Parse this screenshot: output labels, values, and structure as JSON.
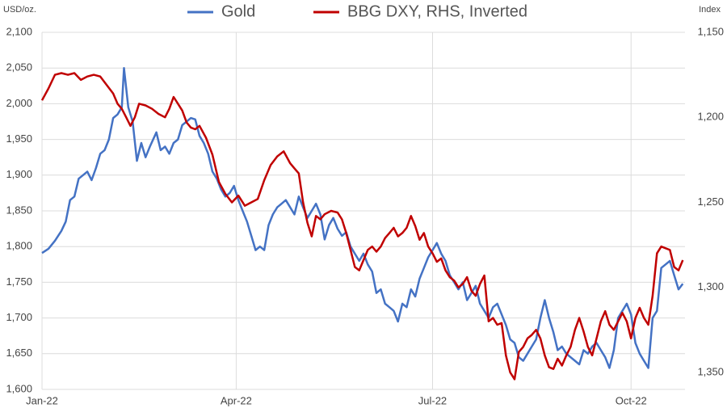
{
  "chart_data": {
    "type": "line",
    "y_label": "USD/oz.",
    "y2_label": "Index",
    "xlim": [
      0,
      298
    ],
    "xticks": [
      {
        "value": 0,
        "label": "Jan-22"
      },
      {
        "value": 90,
        "label": "Apr-22"
      },
      {
        "value": 181,
        "label": "Jul-22"
      },
      {
        "value": 273,
        "label": "Oct-22"
      }
    ],
    "ylim": [
      1600,
      2100
    ],
    "yticks": [
      {
        "value": 1600,
        "label": "1,600"
      },
      {
        "value": 1650,
        "label": "1,650"
      },
      {
        "value": 1700,
        "label": "1,700"
      },
      {
        "value": 1750,
        "label": "1,750"
      },
      {
        "value": 1800,
        "label": "1,800"
      },
      {
        "value": 1850,
        "label": "1,850"
      },
      {
        "value": 1900,
        "label": "1,900"
      },
      {
        "value": 1950,
        "label": "1,950"
      },
      {
        "value": 2000,
        "label": "2,000"
      },
      {
        "value": 2050,
        "label": "2,050"
      },
      {
        "value": 2100,
        "label": "2,100"
      }
    ],
    "y2lim": [
      1150,
      1360
    ],
    "y2_inverted": true,
    "y2ticks": [
      {
        "value": 1150,
        "label": "1,150"
      },
      {
        "value": 1200,
        "label": "1,200"
      },
      {
        "value": 1250,
        "label": "1,250"
      },
      {
        "value": 1300,
        "label": "1,300"
      },
      {
        "value": 1350,
        "label": "1,350"
      }
    ],
    "grid": true,
    "legend": "top",
    "series": [
      {
        "name": "Gold",
        "color": "#4472c4",
        "x": [
          0,
          3,
          6,
          9,
          11,
          13,
          15,
          17,
          19,
          21,
          23,
          25,
          27,
          29,
          31,
          33,
          35,
          37,
          38,
          40,
          42,
          44,
          46,
          48,
          50,
          53,
          55,
          57,
          59,
          61,
          63,
          65,
          67,
          69,
          71,
          73,
          75,
          77,
          79,
          81,
          83,
          85,
          87,
          89,
          91,
          93,
          95,
          97,
          99,
          101,
          103,
          105,
          107,
          109,
          111,
          113,
          115,
          117,
          119,
          121,
          123,
          125,
          127,
          129,
          131,
          133,
          135,
          137,
          139,
          141,
          143,
          145,
          147,
          149,
          151,
          153,
          155,
          157,
          159,
          161,
          163,
          165,
          167,
          169,
          171,
          173,
          175,
          177,
          179,
          181,
          183,
          185,
          187,
          189,
          191,
          193,
          195,
          197,
          199,
          201,
          203,
          205,
          207,
          209,
          211,
          213,
          215,
          217,
          219,
          221,
          223,
          225,
          227,
          229,
          231,
          233,
          235,
          237,
          239,
          241,
          243,
          245,
          247,
          249,
          251,
          253,
          255,
          257,
          259,
          261,
          263,
          265,
          267,
          269,
          271,
          273,
          275,
          277,
          279,
          281,
          283,
          285,
          287,
          289,
          291,
          293,
          295,
          297
        ],
        "values": [
          1791,
          1797,
          1808,
          1822,
          1835,
          1865,
          1870,
          1895,
          1900,
          1905,
          1893,
          1910,
          1930,
          1935,
          1950,
          1980,
          1985,
          1995,
          2050,
          1995,
          1975,
          1920,
          1945,
          1925,
          1940,
          1960,
          1935,
          1940,
          1930,
          1945,
          1950,
          1970,
          1975,
          1980,
          1978,
          1955,
          1945,
          1930,
          1905,
          1895,
          1880,
          1870,
          1875,
          1885,
          1865,
          1850,
          1835,
          1815,
          1795,
          1800,
          1795,
          1830,
          1845,
          1855,
          1860,
          1865,
          1855,
          1845,
          1870,
          1855,
          1840,
          1850,
          1860,
          1845,
          1810,
          1830,
          1840,
          1825,
          1815,
          1820,
          1800,
          1790,
          1780,
          1790,
          1775,
          1765,
          1735,
          1740,
          1720,
          1715,
          1710,
          1695,
          1720,
          1715,
          1740,
          1730,
          1755,
          1770,
          1785,
          1795,
          1805,
          1790,
          1780,
          1760,
          1750,
          1740,
          1750,
          1725,
          1735,
          1745,
          1720,
          1710,
          1700,
          1715,
          1720,
          1705,
          1690,
          1670,
          1665,
          1645,
          1640,
          1650,
          1660,
          1670,
          1700,
          1725,
          1700,
          1680,
          1655,
          1660,
          1650,
          1645,
          1640,
          1635,
          1655,
          1650,
          1660,
          1665,
          1655,
          1645,
          1630,
          1655,
          1700,
          1710,
          1720,
          1705,
          1665,
          1650,
          1640,
          1630,
          1700,
          1710,
          1770,
          1775,
          1780,
          1760,
          1740,
          1748
        ]
      },
      {
        "name": "BBG DXY, RHS, Inverted",
        "color": "#c00000",
        "axis": "y2",
        "x": [
          0,
          3,
          6,
          9,
          12,
          15,
          18,
          21,
          24,
          27,
          30,
          33,
          35,
          37,
          39,
          41,
          43,
          45,
          48,
          51,
          54,
          57,
          59,
          61,
          63,
          65,
          67,
          69,
          71,
          73,
          76,
          79,
          82,
          85,
          88,
          91,
          94,
          97,
          100,
          103,
          106,
          109,
          112,
          115,
          117,
          119,
          121,
          123,
          125,
          127,
          129,
          131,
          134,
          137,
          139,
          141,
          143,
          145,
          147,
          149,
          151,
          153,
          155,
          157,
          159,
          161,
          163,
          165,
          167,
          169,
          171,
          173,
          175,
          177,
          179,
          181,
          183,
          185,
          187,
          189,
          191,
          193,
          195,
          197,
          199,
          201,
          203,
          205,
          207,
          209,
          211,
          213,
          215,
          217,
          219,
          221,
          223,
          225,
          227,
          229,
          231,
          233,
          235,
          237,
          239,
          241,
          243,
          245,
          247,
          249,
          251,
          253,
          255,
          257,
          259,
          261,
          263,
          265,
          267,
          269,
          271,
          273,
          275,
          277,
          279,
          281,
          283,
          285,
          287,
          289,
          291,
          293,
          295,
          297
        ],
        "values": [
          1190,
          1183,
          1175,
          1174,
          1175,
          1174,
          1178,
          1176,
          1175,
          1176,
          1181,
          1186,
          1192,
          1195,
          1200,
          1205,
          1200,
          1192,
          1193,
          1195,
          1198,
          1200,
          1195,
          1188,
          1192,
          1196,
          1203,
          1206,
          1207,
          1205,
          1212,
          1222,
          1238,
          1245,
          1250,
          1246,
          1252,
          1250,
          1248,
          1237,
          1228,
          1223,
          1220,
          1227,
          1230,
          1233,
          1250,
          1262,
          1270,
          1258,
          1260,
          1257,
          1255,
          1256,
          1260,
          1268,
          1278,
          1288,
          1290,
          1284,
          1278,
          1276,
          1279,
          1276,
          1271,
          1268,
          1265,
          1270,
          1268,
          1265,
          1258,
          1264,
          1272,
          1268,
          1276,
          1280,
          1285,
          1283,
          1290,
          1294,
          1296,
          1300,
          1298,
          1294,
          1302,
          1305,
          1298,
          1293,
          1320,
          1318,
          1322,
          1321,
          1340,
          1350,
          1354,
          1338,
          1335,
          1330,
          1328,
          1325,
          1330,
          1340,
          1347,
          1348,
          1342,
          1346,
          1340,
          1335,
          1325,
          1318,
          1326,
          1335,
          1340,
          1330,
          1320,
          1314,
          1322,
          1325,
          1320,
          1315,
          1320,
          1330,
          1318,
          1312,
          1318,
          1322,
          1305,
          1280,
          1276,
          1277,
          1278,
          1288,
          1290,
          1284
        ]
      }
    ]
  }
}
